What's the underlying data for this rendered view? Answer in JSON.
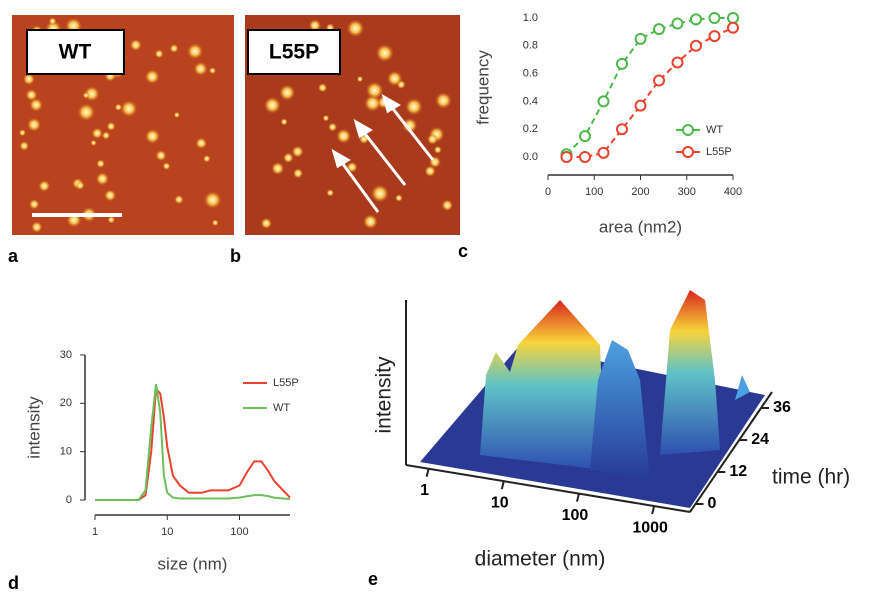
{
  "figure": {
    "panel_labels": [
      "a",
      "b",
      "c",
      "d",
      "e"
    ],
    "image_labels": [
      "WT",
      "L55P"
    ]
  },
  "chart_data": [
    {
      "type": "line",
      "xlabel": "area (nm2)",
      "ylabel": "frequency",
      "x": [
        40,
        80,
        120,
        160,
        200,
        240,
        280,
        320,
        360,
        400
      ],
      "series": [
        {
          "name": "WT",
          "color": "#4cb848",
          "values": [
            0.02,
            0.15,
            0.4,
            0.67,
            0.85,
            0.92,
            0.96,
            0.99,
            1.0,
            1.0
          ]
        },
        {
          "name": "L55P",
          "color": "#e8432f",
          "values": [
            0,
            0,
            0.03,
            0.2,
            0.37,
            0.55,
            0.68,
            0.8,
            0.87,
            0.93
          ]
        }
      ],
      "xlim": [
        0,
        400
      ],
      "xticks": [
        0,
        100,
        200,
        300,
        400
      ],
      "ylim": [
        0,
        1
      ],
      "yticks": [
        {
          "value": 0,
          "label": "0.0"
        },
        0.2,
        0.4,
        0.6,
        0.8,
        {
          "value": 1,
          "label": "1.0"
        }
      ],
      "markers": true,
      "dashed": true,
      "grid": false
    },
    {
      "type": "line",
      "xlabel": "size (nm)",
      "ylabel": "intensity",
      "xscale": "log",
      "x": [
        1,
        2,
        3,
        4,
        5,
        6,
        7,
        8,
        9,
        10,
        12,
        15,
        20,
        30,
        40,
        50,
        70,
        100,
        130,
        160,
        200,
        250,
        300,
        400,
        500
      ],
      "series": [
        {
          "name": "L55P",
          "color": "#e8432f",
          "values": [
            0,
            0,
            0,
            0,
            1,
            10,
            23,
            22,
            17,
            11,
            5,
            3,
            1.5,
            1.5,
            2,
            2,
            2,
            3,
            6,
            8,
            8,
            6,
            4,
            2,
            0.5
          ]
        },
        {
          "name": "WT",
          "color": "#6cbf5a",
          "values": [
            0,
            0,
            0,
            0,
            2,
            15,
            24,
            18,
            5,
            1.5,
            0.5,
            0.3,
            0.3,
            0.3,
            0.3,
            0.3,
            0.3,
            0.5,
            0.8,
            1,
            1,
            0.8,
            0.5,
            0.3,
            0.2
          ]
        }
      ],
      "xlim": [
        1,
        500
      ],
      "xticks": [
        1,
        10,
        100
      ],
      "ylim": [
        0,
        30
      ],
      "yticks": [
        0,
        10,
        20,
        30
      ],
      "markers": false,
      "dashed": false,
      "grid": false
    },
    {
      "type": "surface",
      "xlabel": "diameter (nm)",
      "ylabel": "intensity",
      "zlabel": "time (hr)",
      "xscale": "log",
      "xlim": [
        0.5,
        3000
      ],
      "xticks": [
        1,
        10,
        100,
        1000
      ],
      "zlim": [
        -3,
        42
      ],
      "zticks": [
        0,
        12,
        24,
        36
      ]
    }
  ]
}
